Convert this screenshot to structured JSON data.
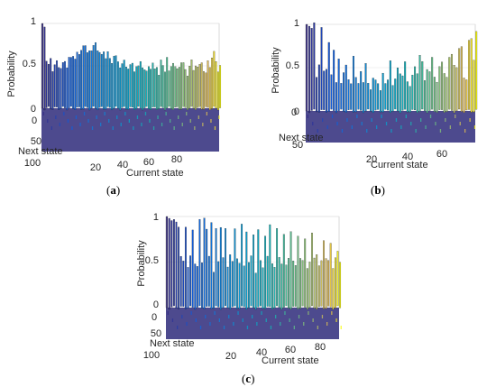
{
  "chart_data": [
    {
      "type": "bar3d",
      "panel_label": {
        "open": "(",
        "letter": "a",
        "close": ")"
      },
      "zlabel": "Probability",
      "xlabel": "Current state",
      "ylabel": "Next state",
      "z_ticks": [
        "0",
        "0.5",
        "1"
      ],
      "x_ticks": [
        "20",
        "40",
        "60",
        "80"
      ],
      "y_ticks": [
        "0",
        "50",
        "100"
      ],
      "zlim": [
        0,
        1
      ],
      "xlim": [
        0,
        90
      ],
      "ylim": [
        0,
        100
      ],
      "colormap": "parula",
      "grid": true,
      "series": [
        {
          "current_state": [
            1,
            2,
            3,
            4,
            5,
            6,
            7,
            8,
            9,
            10,
            11,
            12,
            13,
            14,
            15,
            16,
            17,
            18,
            19,
            20,
            21,
            22,
            23,
            24,
            25,
            26,
            27,
            28,
            29,
            30,
            31,
            32,
            33,
            34,
            35,
            36,
            37,
            38,
            39,
            40,
            41,
            42,
            43,
            44,
            45,
            46,
            47,
            48,
            49,
            50,
            51,
            52,
            53,
            54,
            55,
            56,
            57,
            58,
            59,
            60,
            61,
            62,
            63,
            64,
            65,
            66,
            67,
            68,
            69,
            70,
            71,
            72,
            73,
            74,
            75,
            76,
            77,
            78,
            79,
            80,
            81,
            82,
            83,
            84,
            85,
            86,
            87,
            88
          ],
          "max_probability": [
            1.0,
            0.98,
            0.55,
            0.5,
            0.6,
            0.45,
            0.5,
            0.55,
            0.5,
            0.48,
            0.52,
            0.55,
            0.5,
            0.6,
            0.58,
            0.62,
            0.6,
            0.65,
            0.62,
            0.7,
            0.75,
            0.72,
            0.65,
            0.7,
            0.68,
            0.72,
            0.78,
            0.7,
            0.65,
            0.62,
            0.68,
            0.6,
            0.65,
            0.58,
            0.55,
            0.62,
            0.6,
            0.55,
            0.5,
            0.52,
            0.55,
            0.5,
            0.48,
            0.5,
            0.52,
            0.45,
            0.5,
            0.48,
            0.55,
            0.5,
            0.45,
            0.42,
            0.5,
            0.48,
            0.52,
            0.45,
            0.5,
            0.4,
            0.55,
            0.5,
            0.45,
            0.6,
            0.42,
            0.5,
            0.55,
            0.48,
            0.45,
            0.5,
            0.55,
            0.52,
            0.45,
            0.4,
            0.5,
            0.55,
            0.45,
            0.52,
            0.48,
            0.5,
            0.55,
            0.45,
            0.4,
            0.55,
            0.5,
            0.6,
            0.65,
            0.55,
            0.45,
            0.5
          ]
        }
      ]
    },
    {
      "type": "bar3d",
      "panel_label": {
        "open": "(",
        "letter": "b",
        "close": ")"
      },
      "zlabel": "Probability",
      "xlabel": "Current state",
      "ylabel": "Next state",
      "z_ticks": [
        "0",
        "0.5",
        "1"
      ],
      "x_ticks": [
        "20",
        "40",
        "60"
      ],
      "y_ticks": [
        "0",
        "50"
      ],
      "zlim": [
        0,
        1
      ],
      "xlim": [
        0,
        70
      ],
      "ylim": [
        0,
        70
      ],
      "colormap": "parula",
      "grid": true,
      "series": [
        {
          "current_state": [
            1,
            2,
            3,
            4,
            5,
            6,
            7,
            8,
            9,
            10,
            11,
            12,
            13,
            14,
            15,
            16,
            17,
            18,
            19,
            20,
            21,
            22,
            23,
            24,
            25,
            26,
            27,
            28,
            29,
            30,
            31,
            32,
            33,
            34,
            35,
            36,
            37,
            38,
            39,
            40,
            41,
            42,
            43,
            44,
            45,
            46,
            47,
            48,
            49,
            50,
            51,
            52,
            53,
            54,
            55,
            56,
            57,
            58,
            59,
            60,
            61,
            62,
            63,
            64,
            65,
            66,
            67,
            68,
            69,
            70
          ],
          "max_probability": [
            1.0,
            1.0,
            0.95,
            1.0,
            0.4,
            0.55,
            0.95,
            0.45,
            0.5,
            0.8,
            0.4,
            0.7,
            0.35,
            0.6,
            0.3,
            0.45,
            0.55,
            0.35,
            0.3,
            0.65,
            0.4,
            0.3,
            0.45,
            0.35,
            0.55,
            0.3,
            0.25,
            0.4,
            0.35,
            0.3,
            0.25,
            0.45,
            0.3,
            0.35,
            0.6,
            0.3,
            0.35,
            0.5,
            0.45,
            0.4,
            0.55,
            0.35,
            0.3,
            0.4,
            0.5,
            0.45,
            0.65,
            0.55,
            0.35,
            0.5,
            0.45,
            0.6,
            0.4,
            0.35,
            0.5,
            0.55,
            0.45,
            0.4,
            0.6,
            0.65,
            0.55,
            0.5,
            0.7,
            0.75,
            0.4,
            0.35,
            0.8,
            0.85,
            0.6,
            0.9
          ]
        }
      ]
    },
    {
      "type": "bar3d",
      "panel_label": {
        "open": "(",
        "letter": "c",
        "close": ")"
      },
      "zlabel": "Probability",
      "xlabel": "Current state",
      "ylabel": "Next state",
      "z_ticks": [
        "0",
        "0.5",
        "1"
      ],
      "x_ticks": [
        "20",
        "40",
        "60",
        "80"
      ],
      "y_ticks": [
        "0",
        "50",
        "100"
      ],
      "zlim": [
        0,
        1
      ],
      "xlim": [
        0,
        80
      ],
      "ylim": [
        0,
        100
      ],
      "colormap": "parula",
      "grid": true,
      "series": [
        {
          "current_state": [
            1,
            2,
            3,
            4,
            5,
            6,
            7,
            8,
            9,
            10,
            11,
            12,
            13,
            14,
            15,
            16,
            17,
            18,
            19,
            20,
            21,
            22,
            23,
            24,
            25,
            26,
            27,
            28,
            29,
            30,
            31,
            32,
            33,
            34,
            35,
            36,
            37,
            38,
            39,
            40,
            41,
            42,
            43,
            44,
            45,
            46,
            47,
            48,
            49,
            50,
            51,
            52,
            53,
            54,
            55,
            56,
            57,
            58,
            59,
            60,
            61,
            62,
            63,
            64,
            65,
            66,
            67,
            68,
            69,
            70,
            71,
            72,
            73,
            74,
            75
          ],
          "max_probability": [
            1.0,
            1.0,
            0.95,
            0.95,
            0.95,
            0.9,
            0.55,
            0.5,
            0.9,
            0.45,
            0.55,
            0.85,
            0.5,
            0.45,
            0.95,
            0.5,
            1.0,
            0.85,
            0.55,
            0.95,
            0.4,
            0.85,
            0.5,
            0.9,
            0.55,
            0.85,
            0.45,
            0.6,
            0.5,
            0.85,
            0.55,
            0.5,
            0.9,
            0.45,
            0.85,
            0.5,
            0.55,
            0.8,
            0.4,
            0.85,
            0.5,
            0.45,
            0.8,
            0.55,
            0.9,
            0.5,
            0.45,
            0.85,
            0.55,
            0.5,
            0.8,
            0.45,
            0.55,
            0.85,
            0.5,
            0.45,
            0.8,
            0.55,
            0.5,
            0.75,
            0.45,
            0.5,
            0.8,
            0.55,
            0.6,
            0.45,
            0.5,
            0.75,
            0.55,
            0.5,
            0.7,
            0.45,
            0.55,
            0.6,
            0.5
          ]
        }
      ]
    }
  ]
}
